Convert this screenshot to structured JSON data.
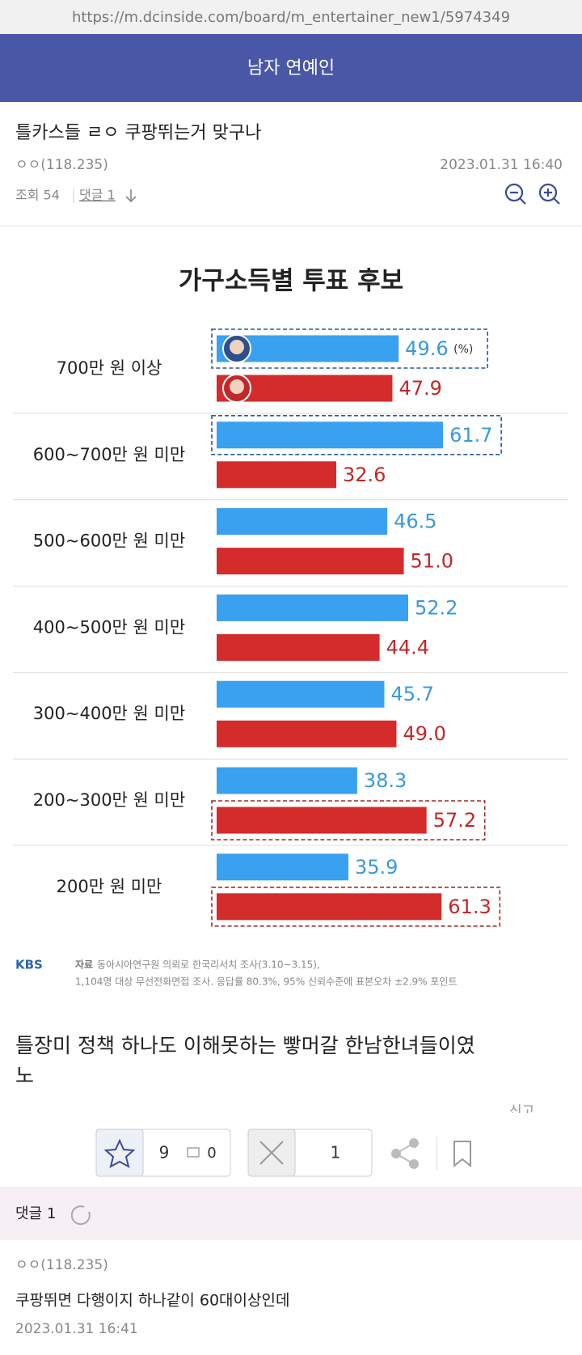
{
  "url": "https://m.dcinside.com/board/m_entertainer_new1/5974349",
  "header": {
    "title": "남자 연예인"
  },
  "post": {
    "title": "틀카스들 ㄹㅇ 쿠팡뛰는거 맞구나",
    "author": "ㅇㅇ(118.235)",
    "date": "2023.01.31 16:40",
    "views": "조회 54",
    "comments_link": "댓글 1"
  },
  "chart_data": {
    "type": "bar",
    "orientation": "horizontal",
    "title": "가구소득별 투표 후보",
    "categories": [
      "700만 원 이상",
      "600~700만 원 미만",
      "500~600만 원 미만",
      "400~500만 원 미만",
      "300~400만 원 미만",
      "200~300만 원 미만",
      "200만 원 미만"
    ],
    "series": [
      {
        "color": "#3aa0f0",
        "label_color": "#3a98dc",
        "values": [
          49.6,
          61.7,
          46.5,
          52.2,
          45.7,
          38.3,
          35.9
        ]
      },
      {
        "color": "#d42b2b",
        "label_color": "#c42626",
        "values": [
          47.9,
          32.6,
          51.0,
          44.4,
          49.0,
          57.2,
          61.3
        ],
        "value_labels": [
          "47.9",
          "32.6",
          "51.0",
          "44.4",
          "49.0",
          "57.2",
          "61.3"
        ]
      }
    ],
    "unit": "(%)",
    "xlim": [
      0,
      70
    ],
    "logo": "KBS",
    "source_label": "자료",
    "source_lines": [
      "동아시아연구원 의뢰로 한국리서치 조사(3.10~3.15),",
      "1,104명 대상 무선전화면접 조사. 응답률 80.3%, 95% 신뢰수준에 표본오차 ±2.9% 포인트"
    ]
  },
  "body": {
    "lines": [
      "틀장미 정책 하나도 이해못하는 빻머갈 한남한녀들이였",
      "노"
    ],
    "report": "신고"
  },
  "actions": {
    "recommend": "9",
    "fixed_recommend": "0",
    "downvote": "1"
  },
  "comments": {
    "header": "댓글 1",
    "items": [
      {
        "author": "ㅇㅇ(118.235)",
        "text": "쿠팡뛰면 다행이지 하나같이 60대이상인데",
        "date": "2023.01.31 16:41"
      }
    ]
  }
}
